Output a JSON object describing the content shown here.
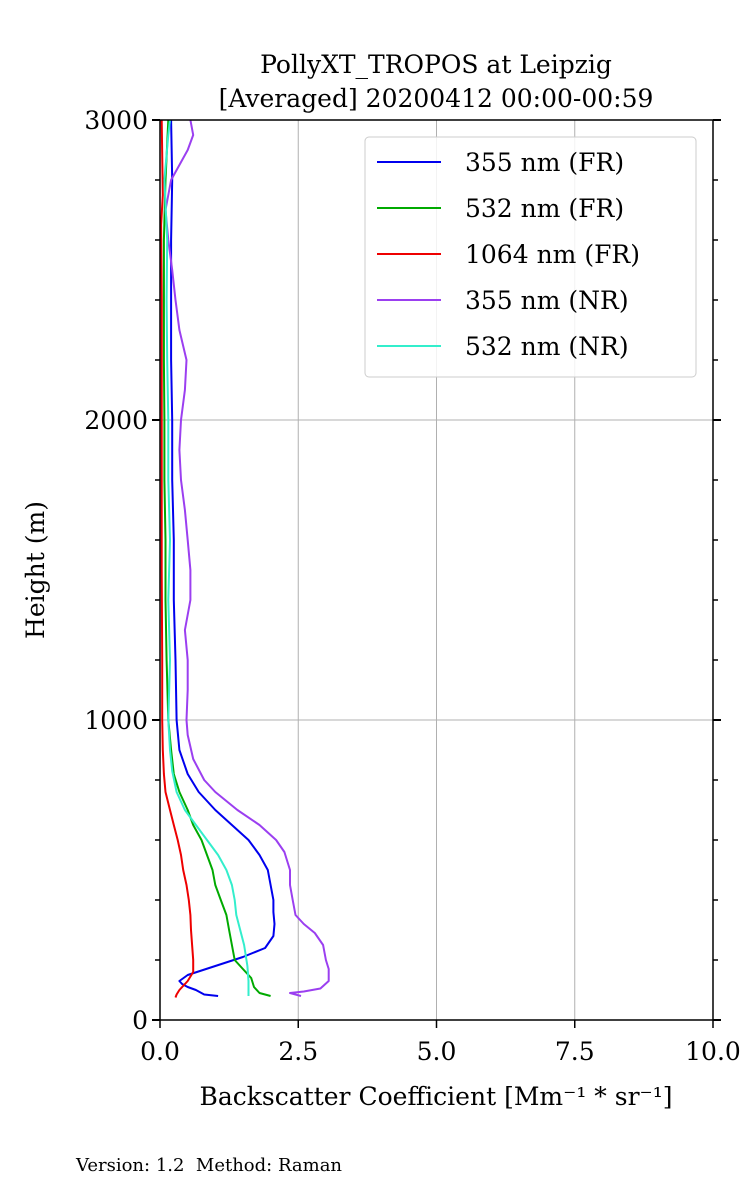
{
  "chart_data": {
    "type": "line",
    "title_line1": "PollyXT_TROPOS at Leipzig",
    "title_line2": "[Averaged] 20200412 00:00-00:59",
    "xlabel": "Backscatter Coefficient [Mm⁻¹ * sr⁻¹]",
    "ylabel": "Height (m)",
    "xlim": [
      0,
      10
    ],
    "ylim": [
      0,
      3000
    ],
    "xticks": [
      "0.0",
      "2.5",
      "5.0",
      "7.5",
      "10.0"
    ],
    "yticks": [
      "0",
      "1000",
      "2000",
      "3000"
    ],
    "grid": true,
    "legend_position": "top-right",
    "series": [
      {
        "name": "355 nm (FR)",
        "color": "#0000ee",
        "points": [
          [
            1.05,
            80
          ],
          [
            0.8,
            85
          ],
          [
            0.65,
            100
          ],
          [
            0.5,
            110
          ],
          [
            0.4,
            120
          ],
          [
            0.35,
            130
          ],
          [
            0.5,
            150
          ],
          [
            1.0,
            180
          ],
          [
            1.5,
            210
          ],
          [
            1.9,
            240
          ],
          [
            2.05,
            280
          ],
          [
            2.07,
            320
          ],
          [
            2.05,
            360
          ],
          [
            2.05,
            400
          ],
          [
            2.0,
            450
          ],
          [
            1.95,
            500
          ],
          [
            1.8,
            550
          ],
          [
            1.6,
            600
          ],
          [
            1.3,
            650
          ],
          [
            1.0,
            700
          ],
          [
            0.7,
            760
          ],
          [
            0.5,
            820
          ],
          [
            0.35,
            900
          ],
          [
            0.3,
            1000
          ],
          [
            0.28,
            1200
          ],
          [
            0.25,
            1400
          ],
          [
            0.25,
            1600
          ],
          [
            0.22,
            1800
          ],
          [
            0.22,
            2000
          ],
          [
            0.2,
            2200
          ],
          [
            0.2,
            2400
          ],
          [
            0.2,
            2600
          ],
          [
            0.22,
            2800
          ],
          [
            0.2,
            3000
          ]
        ]
      },
      {
        "name": "532 nm (FR)",
        "color": "#00aa00",
        "points": [
          [
            2.0,
            80
          ],
          [
            1.8,
            90
          ],
          [
            1.7,
            110
          ],
          [
            1.65,
            140
          ],
          [
            1.5,
            170
          ],
          [
            1.35,
            200
          ],
          [
            1.3,
            250
          ],
          [
            1.25,
            300
          ],
          [
            1.2,
            350
          ],
          [
            1.1,
            400
          ],
          [
            1.0,
            450
          ],
          [
            0.95,
            500
          ],
          [
            0.85,
            550
          ],
          [
            0.75,
            600
          ],
          [
            0.6,
            650
          ],
          [
            0.5,
            700
          ],
          [
            0.35,
            760
          ],
          [
            0.25,
            820
          ],
          [
            0.2,
            900
          ],
          [
            0.15,
            1000
          ],
          [
            0.12,
            1200
          ],
          [
            0.1,
            1400
          ],
          [
            0.1,
            1600
          ],
          [
            0.08,
            1800
          ],
          [
            0.08,
            2000
          ],
          [
            0.07,
            2200
          ],
          [
            0.07,
            2400
          ],
          [
            0.07,
            2600
          ],
          [
            0.1,
            2800
          ],
          [
            0.15,
            3000
          ]
        ]
      },
      {
        "name": "1064 nm (FR)",
        "color": "#ee0000",
        "points": [
          [
            0.28,
            75
          ],
          [
            0.3,
            85
          ],
          [
            0.35,
            100
          ],
          [
            0.5,
            130
          ],
          [
            0.6,
            160
          ],
          [
            0.6,
            200
          ],
          [
            0.58,
            250
          ],
          [
            0.56,
            300
          ],
          [
            0.55,
            350
          ],
          [
            0.52,
            400
          ],
          [
            0.48,
            450
          ],
          [
            0.42,
            500
          ],
          [
            0.38,
            550
          ],
          [
            0.32,
            600
          ],
          [
            0.25,
            650
          ],
          [
            0.18,
            700
          ],
          [
            0.1,
            760
          ],
          [
            0.07,
            820
          ],
          [
            0.05,
            900
          ],
          [
            0.04,
            1000
          ],
          [
            0.04,
            1200
          ],
          [
            0.03,
            1500
          ],
          [
            0.03,
            1800
          ],
          [
            0.03,
            2100
          ],
          [
            0.03,
            2400
          ],
          [
            0.02,
            2650
          ],
          [
            0.05,
            2750
          ],
          [
            0.03,
            3000
          ]
        ]
      },
      {
        "name": "355 nm (NR)",
        "color": "#9b3ff0",
        "points": [
          [
            2.55,
            80
          ],
          [
            2.35,
            90
          ],
          [
            2.6,
            95
          ],
          [
            2.9,
            105
          ],
          [
            3.05,
            130
          ],
          [
            3.05,
            170
          ],
          [
            3.0,
            200
          ],
          [
            2.95,
            250
          ],
          [
            2.8,
            290
          ],
          [
            2.6,
            320
          ],
          [
            2.45,
            350
          ],
          [
            2.4,
            400
          ],
          [
            2.35,
            450
          ],
          [
            2.35,
            500
          ],
          [
            2.25,
            560
          ],
          [
            2.1,
            600
          ],
          [
            1.8,
            650
          ],
          [
            1.4,
            700
          ],
          [
            1.0,
            760
          ],
          [
            0.8,
            800
          ],
          [
            0.6,
            870
          ],
          [
            0.5,
            950
          ],
          [
            0.48,
            1000
          ],
          [
            0.5,
            1100
          ],
          [
            0.5,
            1200
          ],
          [
            0.45,
            1300
          ],
          [
            0.55,
            1400
          ],
          [
            0.55,
            1500
          ],
          [
            0.5,
            1600
          ],
          [
            0.45,
            1700
          ],
          [
            0.38,
            1800
          ],
          [
            0.35,
            1900
          ],
          [
            0.38,
            2000
          ],
          [
            0.45,
            2100
          ],
          [
            0.48,
            2200
          ],
          [
            0.35,
            2300
          ],
          [
            0.28,
            2400
          ],
          [
            0.22,
            2500
          ],
          [
            0.15,
            2600
          ],
          [
            0.1,
            2700
          ],
          [
            0.2,
            2800
          ],
          [
            0.5,
            2900
          ],
          [
            0.6,
            2950
          ],
          [
            0.55,
            3000
          ]
        ]
      },
      {
        "name": "532 nm (NR)",
        "color": "#33eecc",
        "points": [
          [
            1.6,
            80
          ],
          [
            1.6,
            130
          ],
          [
            1.58,
            180
          ],
          [
            1.52,
            250
          ],
          [
            1.45,
            300
          ],
          [
            1.38,
            350
          ],
          [
            1.35,
            400
          ],
          [
            1.3,
            450
          ],
          [
            1.2,
            500
          ],
          [
            1.05,
            550
          ],
          [
            0.85,
            600
          ],
          [
            0.65,
            650
          ],
          [
            0.45,
            700
          ],
          [
            0.3,
            760
          ],
          [
            0.22,
            830
          ],
          [
            0.18,
            900
          ],
          [
            0.15,
            1000
          ],
          [
            0.18,
            1200
          ],
          [
            0.15,
            1400
          ],
          [
            0.18,
            1600
          ],
          [
            0.15,
            1800
          ],
          [
            0.15,
            2000
          ],
          [
            0.13,
            2200
          ],
          [
            0.12,
            2400
          ],
          [
            0.13,
            2600
          ],
          [
            0.08,
            2800
          ],
          [
            0.15,
            2950
          ],
          [
            0.18,
            3000
          ]
        ]
      }
    ]
  },
  "footer": {
    "version_text": "Version: 1.2  Method: Raman"
  }
}
